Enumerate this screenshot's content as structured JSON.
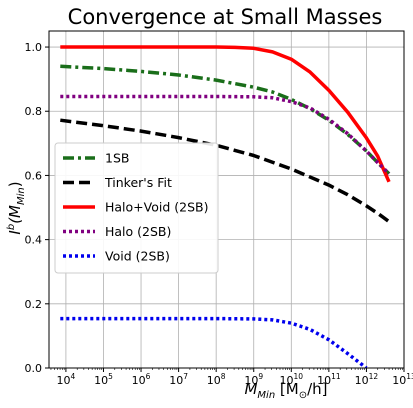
{
  "chart_data": {
    "type": "line",
    "title": "Convergence at Small Masses",
    "xlabel": {
      "main": "M",
      "sub": "Min",
      "unit_open": " [M",
      "unit_sub": "⊙",
      "unit_close": "/h]"
    },
    "ylabel": {
      "main": "I",
      "sup": "b",
      "open": "(M",
      "sub": "Min",
      "close": ")"
    },
    "xscale": "log",
    "xlim_log10": [
      3.55,
      13.0
    ],
    "ylim": [
      0,
      1.05
    ],
    "x_ticks": [
      {
        "base": "10",
        "exp": "4",
        "log10": 4
      },
      {
        "base": "10",
        "exp": "5",
        "log10": 5
      },
      {
        "base": "10",
        "exp": "6",
        "log10": 6
      },
      {
        "base": "10",
        "exp": "7",
        "log10": 7
      },
      {
        "base": "10",
        "exp": "8",
        "log10": 8
      },
      {
        "base": "10",
        "exp": "9",
        "log10": 9
      },
      {
        "base": "10",
        "exp": "10",
        "log10": 10
      },
      {
        "base": "10",
        "exp": "11",
        "log10": 11
      },
      {
        "base": "10",
        "exp": "12",
        "log10": 12
      },
      {
        "base": "10",
        "exp": "13",
        "log10": 13
      }
    ],
    "y_ticks": [
      "0.0",
      "0.2",
      "0.4",
      "0.6",
      "0.8",
      "1.0"
    ],
    "grid": true,
    "legend_position": "center-left",
    "series": [
      {
        "name": "1SB",
        "color": "#1a6e1a",
        "dash": "dashdot",
        "log10_x": [
          3.85,
          5,
          6,
          7,
          8,
          9,
          9.5,
          10,
          10.5,
          11,
          11.5,
          12,
          12.3,
          12.6
        ],
        "y": [
          0.94,
          0.933,
          0.924,
          0.913,
          0.897,
          0.875,
          0.86,
          0.837,
          0.808,
          0.772,
          0.728,
          0.676,
          0.64,
          0.605
        ]
      },
      {
        "name": "Tinker's Fit",
        "color": "#000000",
        "dash": "dashed",
        "log10_x": [
          3.85,
          5,
          6,
          7,
          8,
          9,
          10,
          11,
          11.5,
          12,
          12.3,
          12.6
        ],
        "y": [
          0.772,
          0.755,
          0.738,
          0.718,
          0.694,
          0.662,
          0.62,
          0.57,
          0.54,
          0.505,
          0.482,
          0.456
        ]
      },
      {
        "name": "Halo+Void (2SB)",
        "color": "#ff0000",
        "dash": "solid",
        "log10_x": [
          3.85,
          5,
          6,
          7,
          8,
          8.5,
          9,
          9.5,
          10,
          10.5,
          11,
          11.5,
          12,
          12.3,
          12.6
        ],
        "y": [
          1.0,
          1.0,
          1.0,
          1.0,
          1.0,
          0.999,
          0.996,
          0.985,
          0.962,
          0.922,
          0.865,
          0.797,
          0.717,
          0.66,
          0.58
        ]
      },
      {
        "name": "Halo (2SB)",
        "color": "#800080",
        "dash": "dotted",
        "log10_x": [
          3.85,
          5,
          6,
          7,
          8,
          9,
          9.5,
          10,
          10.5,
          11,
          11.5,
          12,
          12.3,
          12.6
        ],
        "y": [
          0.846,
          0.846,
          0.846,
          0.846,
          0.846,
          0.845,
          0.842,
          0.83,
          0.81,
          0.775,
          0.73,
          0.676,
          0.64,
          0.605
        ]
      },
      {
        "name": "Void (2SB)",
        "color": "#0000ee",
        "dash": "dotted",
        "log10_x": [
          3.85,
          5,
          6,
          7,
          8,
          9,
          9.5,
          10,
          10.5,
          11,
          11.5,
          12
        ],
        "y": [
          0.154,
          0.154,
          0.154,
          0.154,
          0.154,
          0.153,
          0.15,
          0.14,
          0.12,
          0.088,
          0.045,
          0.0
        ]
      }
    ]
  }
}
